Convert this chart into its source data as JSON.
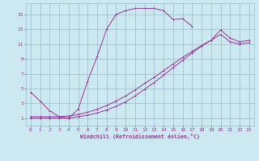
{
  "xlabel": "Windchill (Refroidissement éolien,°C)",
  "bg_color": "#cce8f0",
  "grid_color": "#99bbcc",
  "line_color": "#993399",
  "xlim": [
    -0.5,
    23.5
  ],
  "ylim": [
    0,
    16.5
  ],
  "xticks": [
    0,
    1,
    2,
    3,
    4,
    5,
    6,
    7,
    8,
    9,
    10,
    11,
    12,
    13,
    14,
    15,
    16,
    17,
    18,
    19,
    20,
    21,
    22,
    23
  ],
  "yticks": [
    1,
    3,
    5,
    7,
    9,
    11,
    13,
    15
  ],
  "line1_x": [
    0,
    1,
    2,
    3,
    4,
    5,
    6,
    7,
    8,
    9,
    10,
    11,
    12,
    13,
    14,
    15,
    16,
    17
  ],
  "line1_y": [
    4.5,
    3.3,
    2.0,
    1.2,
    1.0,
    2.2,
    6.0,
    9.3,
    13.0,
    15.0,
    15.5,
    15.8,
    15.8,
    15.8,
    15.5,
    14.3,
    14.4,
    13.4
  ],
  "line2_x": [
    0,
    1,
    2,
    3,
    4,
    5,
    6,
    7,
    8,
    9,
    10,
    11,
    12,
    13,
    14,
    15,
    16,
    17,
    18,
    19,
    20,
    21,
    22,
    23
  ],
  "line2_y": [
    1.2,
    1.2,
    1.2,
    1.2,
    1.3,
    1.5,
    1.8,
    2.2,
    2.7,
    3.3,
    4.0,
    4.8,
    5.7,
    6.5,
    7.4,
    8.3,
    9.2,
    10.0,
    10.8,
    11.5,
    12.9,
    11.8,
    11.3,
    11.5
  ],
  "line3_x": [
    0,
    1,
    2,
    3,
    4,
    5,
    6,
    7,
    8,
    9,
    10,
    11,
    12,
    13,
    14,
    15,
    16,
    17,
    18,
    19,
    20,
    21,
    22,
    23
  ],
  "line3_y": [
    1.0,
    1.0,
    1.0,
    1.0,
    1.0,
    1.2,
    1.4,
    1.7,
    2.1,
    2.6,
    3.2,
    4.0,
    4.9,
    5.8,
    6.8,
    7.8,
    8.8,
    9.8,
    10.7,
    11.5,
    12.3,
    11.3,
    11.0,
    11.2
  ]
}
